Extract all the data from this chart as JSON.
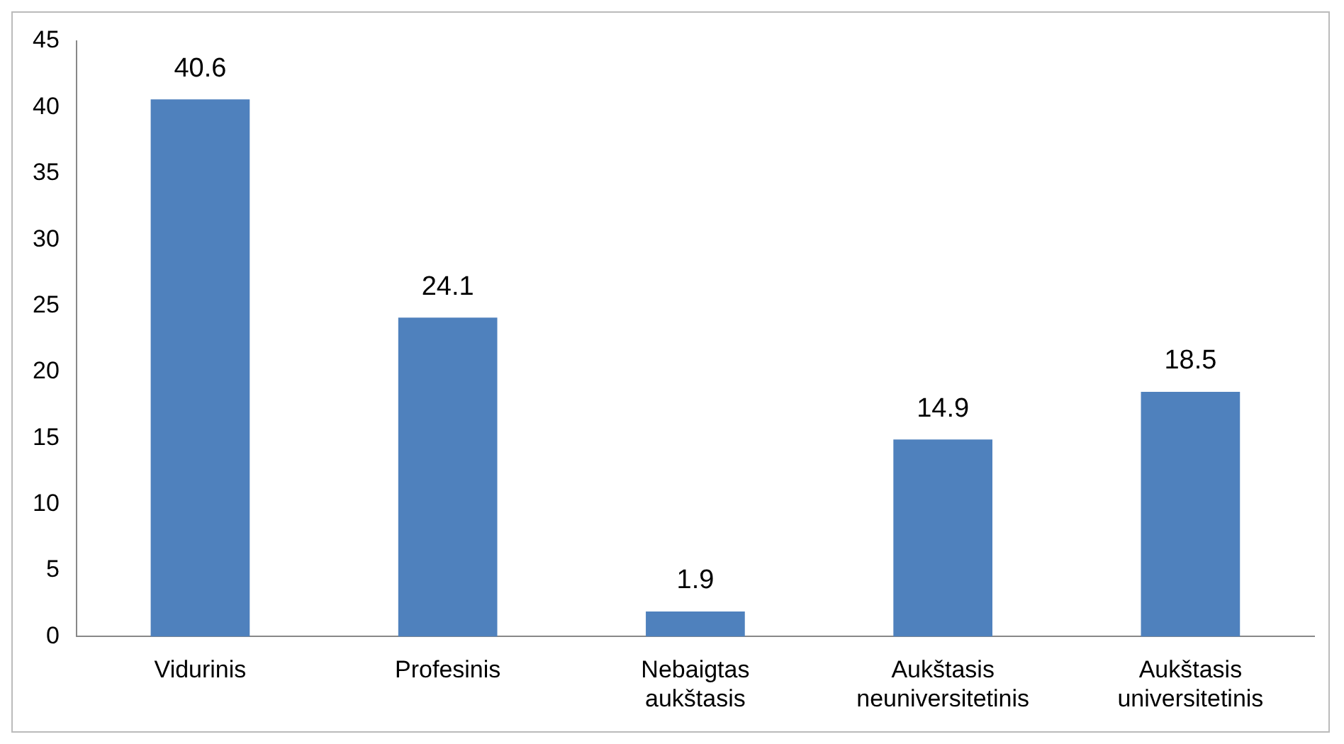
{
  "chart_data": {
    "type": "bar",
    "categories": [
      "Vidurinis",
      "Profesinis",
      "Nebaigtas aukštasis",
      "Aukštasis neuniversitetinis",
      "Aukštasis universitetinis"
    ],
    "values": [
      40.6,
      24.1,
      1.9,
      14.9,
      18.5
    ],
    "color": "#4f81bd",
    "ylim": [
      0,
      45
    ],
    "yticks": [
      0,
      5,
      10,
      15,
      20,
      25,
      30,
      35,
      40,
      45
    ],
    "grid": false,
    "data_labels": true
  }
}
